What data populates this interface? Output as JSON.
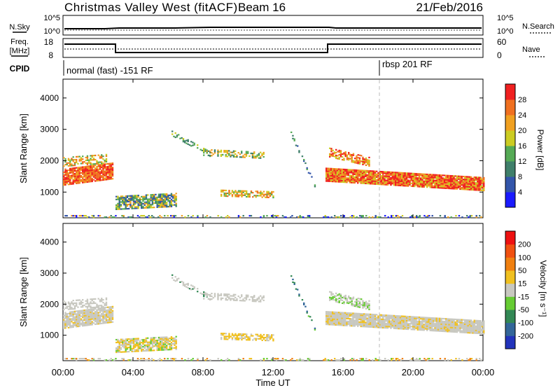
{
  "header": {
    "title": "Christmas Valley West (fitACF)",
    "beam": "Beam 16",
    "date": "21/Feb/2016"
  },
  "noise_panel": {
    "left_label": "N.Sky",
    "right_label": "N.Search",
    "left_ticks": [
      "10^5",
      "10^0"
    ],
    "right_ticks": [
      "10^5",
      "10^0"
    ]
  },
  "freq_panel": {
    "left_label_1": "Freq.",
    "left_label_2": "[MHz]",
    "right_label": "Nave",
    "left_ticks": [
      "18",
      "8"
    ],
    "right_ticks": [
      "60",
      "0"
    ]
  },
  "cpid": {
    "label": "CPID",
    "mode_1": "normal (fast) -151 RF",
    "mode_2": "rbsp 201 RF"
  },
  "chart_data": [
    {
      "type": "heatmap",
      "name": "power",
      "ylabel": "Slant Range [km]",
      "ylim": [
        180,
        4600
      ],
      "yticks": [
        "1000",
        "2000",
        "3000",
        "4000"
      ],
      "colorbar_label": "Power [dB]",
      "colorbar_ticks": [
        "4",
        "8",
        "12",
        "16",
        "20",
        "24",
        "28"
      ],
      "colors": [
        "#1a1aff",
        "#3355aa",
        "#3f7f6a",
        "#55aa55",
        "#cccc22",
        "#f0a020",
        "#f07020",
        "#f02020"
      ]
    },
    {
      "type": "heatmap",
      "name": "velocity",
      "ylabel": "Slant Range [km]",
      "ylim": [
        180,
        4600
      ],
      "yticks": [
        "1000",
        "2000",
        "3000",
        "4000"
      ],
      "colorbar_label": "Velocity [m s⁻¹]",
      "colorbar_ticks": [
        "200",
        "100",
        "50",
        "15",
        "-15",
        "-50",
        "-100",
        "-200"
      ],
      "colors": [
        "#2233bb",
        "#336699",
        "#338855",
        "#66cc33",
        "#c8c8c0",
        "#f0c020",
        "#f08010",
        "#f05010",
        "#ee1111"
      ]
    }
  ],
  "x_axis": {
    "label": "Time UT",
    "ticks": [
      "00:00",
      "04:00",
      "08:00",
      "12:00",
      "16:00",
      "20:00",
      "00:00"
    ]
  }
}
